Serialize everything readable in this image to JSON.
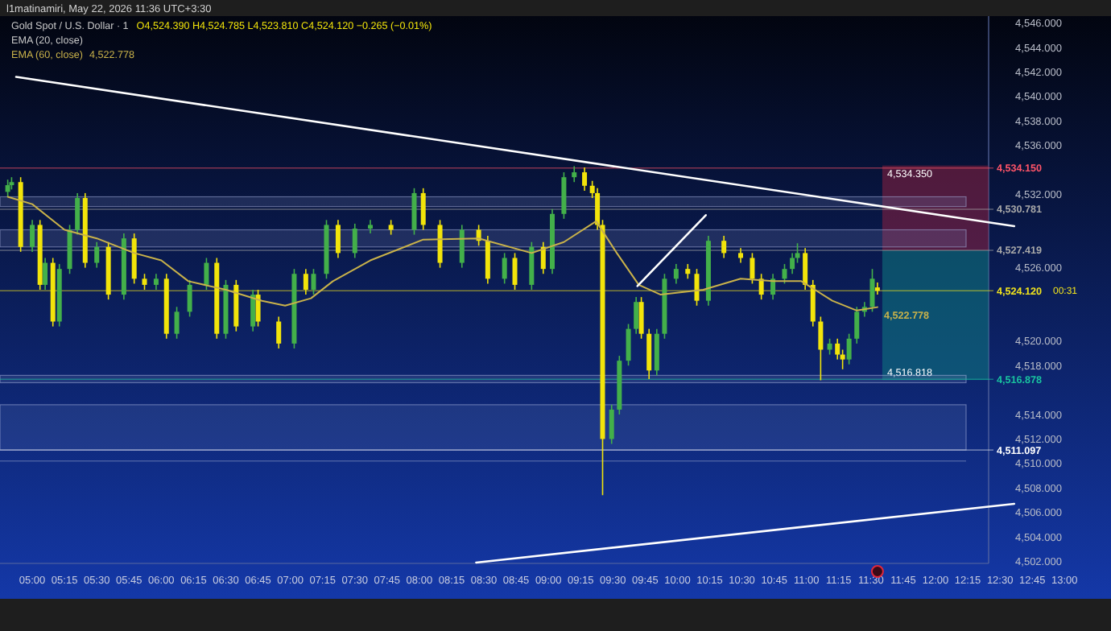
{
  "chart_data": {
    "type": "candlestick",
    "title": "Gold Spot / U.S. Dollar · 1",
    "annotations": [
      "l1matinamiri, May 22, 2026 11:36 UTC+3:30",
      "O4,524.390 H4,524.785 L4,523.810 C4,524.120 −0.265 (−0.01%)",
      "EMA (20, close)",
      "00:31"
    ],
    "x": [
      4.81,
      4.84,
      4.91,
      5.0,
      5.06,
      5.1,
      5.16,
      5.21,
      5.29,
      5.35,
      5.41,
      5.5,
      5.59,
      5.71,
      5.79,
      5.87,
      5.96,
      6.04,
      6.12,
      6.22,
      6.35,
      6.43,
      6.5,
      6.58,
      6.71,
      6.75,
      6.91,
      7.03,
      7.12,
      7.18,
      7.28,
      7.37,
      7.5,
      7.62,
      7.78,
      7.96,
      8.03,
      8.16,
      8.33,
      8.46,
      8.53,
      8.66,
      8.74,
      8.87,
      8.96,
      9.03,
      9.12,
      9.2,
      9.28,
      9.34,
      9.38,
      9.42,
      9.49,
      9.55,
      9.62,
      9.68,
      9.72,
      9.78,
      9.84,
      9.9,
      9.99,
      10.08,
      10.15,
      10.24,
      10.36,
      10.49,
      10.58,
      10.65,
      10.74,
      10.83,
      10.89,
      10.93,
      10.99,
      11.05,
      11.11,
      11.18,
      11.24,
      11.28,
      11.33,
      11.39,
      11.45,
      11.51,
      11.55
    ],
    "ohlc": [
      [
        4532.2,
        4533.2,
        4531.8,
        4532.75
      ],
      [
        4532.75,
        4533.4,
        4532.4,
        4533.0
      ],
      [
        4533.0,
        4533.4,
        4527.3,
        4527.7
      ],
      [
        4527.7,
        4529.9,
        4527.3,
        4529.5
      ],
      [
        4529.5,
        4529.9,
        4524.2,
        4524.6
      ],
      [
        4524.6,
        4526.8,
        4524.2,
        4526.4
      ],
      [
        4526.4,
        4526.8,
        4521.2,
        4521.6
      ],
      [
        4521.6,
        4526.3,
        4521.2,
        4525.9
      ],
      [
        4525.9,
        4529.5,
        4525.5,
        4529.1
      ],
      [
        4529.1,
        4532.1,
        4528.7,
        4531.7
      ],
      [
        4531.7,
        4532.1,
        4526.0,
        4526.4
      ],
      [
        4526.4,
        4528.1,
        4526.0,
        4527.7
      ],
      [
        4527.7,
        4528.1,
        4523.4,
        4523.8
      ],
      [
        4523.8,
        4528.8,
        4523.4,
        4528.4
      ],
      [
        4528.4,
        4528.8,
        4524.7,
        4525.1
      ],
      [
        4525.1,
        4525.5,
        4524.2,
        4524.6
      ],
      [
        4524.6,
        4525.5,
        4524.2,
        4525.1
      ],
      [
        4525.1,
        4525.5,
        4520.2,
        4520.6
      ],
      [
        4520.6,
        4522.8,
        4520.2,
        4522.4
      ],
      [
        4522.4,
        4525.0,
        4522.0,
        4524.6
      ],
      [
        4524.6,
        4526.8,
        4524.2,
        4526.4
      ],
      [
        4526.4,
        4526.8,
        4520.2,
        4520.6
      ],
      [
        4520.6,
        4525.0,
        4520.2,
        4524.6
      ],
      [
        4524.6,
        4525.0,
        4520.8,
        4521.2
      ],
      [
        4521.2,
        4524.2,
        4520.8,
        4523.8
      ],
      [
        4523.8,
        4524.2,
        4521.2,
        4521.6
      ],
      [
        4521.6,
        4522.0,
        4519.4,
        4519.8
      ],
      [
        4519.8,
        4525.9,
        4519.4,
        4525.5
      ],
      [
        4525.5,
        4525.9,
        4523.8,
        4524.2
      ],
      [
        4524.2,
        4525.9,
        4523.8,
        4525.5
      ],
      [
        4525.5,
        4529.9,
        4525.1,
        4529.5
      ],
      [
        4529.5,
        4529.9,
        4526.8,
        4527.2
      ],
      [
        4527.2,
        4529.6,
        4526.8,
        4529.2
      ],
      [
        4529.2,
        4529.9,
        4528.8,
        4529.5
      ],
      [
        4529.5,
        4529.9,
        4528.7,
        4529.1
      ],
      [
        4529.1,
        4532.5,
        4528.7,
        4532.1
      ],
      [
        4532.1,
        4532.5,
        4529.1,
        4529.5
      ],
      [
        4529.5,
        4529.9,
        4526.0,
        4526.4
      ],
      [
        4526.4,
        4529.5,
        4526.0,
        4529.1
      ],
      [
        4529.1,
        4529.5,
        4527.8,
        4528.2
      ],
      [
        4528.2,
        4528.6,
        4524.7,
        4525.1
      ],
      [
        4525.1,
        4527.2,
        4524.7,
        4526.8
      ],
      [
        4526.8,
        4527.2,
        4524.2,
        4524.6
      ],
      [
        4524.6,
        4528.1,
        4524.2,
        4527.7
      ],
      [
        4527.7,
        4528.1,
        4525.5,
        4525.9
      ],
      [
        4525.9,
        4530.8,
        4525.5,
        4530.4
      ],
      [
        4530.4,
        4533.8,
        4530.0,
        4533.4
      ],
      [
        4533.4,
        4534.3,
        4533.0,
        4533.8
      ],
      [
        4533.8,
        4534.2,
        4532.3,
        4532.7
      ],
      [
        4532.7,
        4533.1,
        4531.7,
        4532.1
      ],
      [
        4532.1,
        4532.5,
        4529.1,
        4529.5
      ],
      [
        4529.5,
        4529.9,
        4507.4,
        4512.0
      ],
      [
        4512.0,
        4514.8,
        4511.6,
        4514.4
      ],
      [
        4514.4,
        4518.8,
        4514.0,
        4518.4
      ],
      [
        4518.4,
        4521.4,
        4518.0,
        4521.0
      ],
      [
        4521.0,
        4523.6,
        4520.6,
        4523.2
      ],
      [
        4523.2,
        4523.6,
        4520.2,
        4520.6
      ],
      [
        4520.6,
        4521.0,
        4516.9,
        4517.6
      ],
      [
        4517.6,
        4521.0,
        4517.2,
        4520.6
      ],
      [
        4520.6,
        4525.5,
        4520.2,
        4525.1
      ],
      [
        4525.1,
        4526.3,
        4524.7,
        4525.9
      ],
      [
        4525.9,
        4526.3,
        4525.1,
        4525.5
      ],
      [
        4525.5,
        4525.9,
        4522.9,
        4523.3
      ],
      [
        4523.3,
        4528.6,
        4522.9,
        4528.2
      ],
      [
        4528.2,
        4528.6,
        4526.8,
        4527.2
      ],
      [
        4527.2,
        4527.6,
        4526.4,
        4526.8
      ],
      [
        4526.8,
        4527.2,
        4524.7,
        4525.1
      ],
      [
        4525.1,
        4525.5,
        4523.4,
        4523.8
      ],
      [
        4523.8,
        4525.5,
        4523.4,
        4525.1
      ],
      [
        4525.1,
        4526.3,
        4524.7,
        4525.9
      ],
      [
        4525.9,
        4527.2,
        4525.5,
        4526.8
      ],
      [
        4526.8,
        4528.0,
        4526.4,
        4527.2
      ],
      [
        4527.2,
        4527.6,
        4524.2,
        4524.6
      ],
      [
        4524.6,
        4525.0,
        4521.2,
        4521.6
      ],
      [
        4521.6,
        4522.0,
        4516.8,
        4519.3
      ],
      [
        4519.3,
        4520.2,
        4518.9,
        4519.8
      ],
      [
        4519.8,
        4520.2,
        4518.5,
        4518.9
      ],
      [
        4518.9,
        4519.3,
        4517.7,
        4518.5
      ],
      [
        4518.5,
        4520.6,
        4518.1,
        4520.2
      ],
      [
        4520.2,
        4522.8,
        4519.8,
        4522.4
      ],
      [
        4522.4,
        4523.2,
        4522.0,
        4522.8
      ],
      [
        4522.8,
        4525.9,
        4522.4,
        4525.1
      ],
      [
        4524.39,
        4524.785,
        4523.81,
        4524.12
      ]
    ],
    "series": [
      {
        "name": "EMA (60, close)",
        "type": "line",
        "color": "#c9b24a",
        "x": [
          4.81,
          5.0,
          5.25,
          5.5,
          5.79,
          6.0,
          6.21,
          6.5,
          6.78,
          6.96,
          7.16,
          7.33,
          7.62,
          8.03,
          8.46,
          8.87,
          9.12,
          9.37,
          9.53,
          9.7,
          9.87,
          10.2,
          10.49,
          10.74,
          10.96,
          11.2,
          11.39,
          11.55
        ],
        "values": [
          4531.8,
          4531.2,
          4529.1,
          4528.4,
          4527.2,
          4526.6,
          4524.9,
          4524.2,
          4523.3,
          4522.9,
          4523.5,
          4524.9,
          4526.6,
          4528.3,
          4528.4,
          4527.2,
          4528.1,
          4529.8,
          4527.2,
          4524.6,
          4523.8,
          4524.2,
          4525.1,
          4524.9,
          4524.9,
          4523.3,
          4522.5,
          4522.778
        ],
        "value_labels": [
          null,
          null,
          null,
          null,
          null,
          null,
          null,
          null,
          null,
          null,
          null,
          null,
          null,
          null,
          null,
          null,
          null,
          null,
          null,
          null,
          null,
          null,
          null,
          null,
          null,
          null,
          null,
          "4,522.778"
        ]
      },
      {
        "type": "line",
        "color": "#ffffff",
        "x": [
          4.875,
          12.61
        ],
        "values": [
          4541.6,
          4529.4
        ]
      },
      {
        "type": "line",
        "color": "#ffffff",
        "x": [
          8.44,
          12.61
        ],
        "values": [
          4501.9,
          4506.7
        ]
      },
      {
        "type": "line",
        "color": "#ffffff",
        "x": [
          9.69,
          10.22
        ],
        "values": [
          4524.5,
          4530.3
        ]
      }
    ],
    "xlim": [
      4.75,
      13.36
    ],
    "ylim": [
      4501.83,
      4546.57
    ],
    "xticks": [
      {
        "value": 5,
        "label": "05:00"
      },
      {
        "value": 5.25,
        "label": "05:15"
      },
      {
        "value": 5.5,
        "label": "05:30"
      },
      {
        "value": 5.75,
        "label": "05:45"
      },
      {
        "value": 6,
        "label": "06:00"
      },
      {
        "value": 6.25,
        "label": "06:15"
      },
      {
        "value": 6.5,
        "label": "06:30"
      },
      {
        "value": 6.75,
        "label": "06:45"
      },
      {
        "value": 7,
        "label": "07:00"
      },
      {
        "value": 7.25,
        "label": "07:15"
      },
      {
        "value": 7.5,
        "label": "07:30"
      },
      {
        "value": 7.75,
        "label": "07:45"
      },
      {
        "value": 8,
        "label": "08:00"
      },
      {
        "value": 8.25,
        "label": "08:15"
      },
      {
        "value": 8.5,
        "label": "08:30"
      },
      {
        "value": 8.75,
        "label": "08:45"
      },
      {
        "value": 9,
        "label": "09:00"
      },
      {
        "value": 9.25,
        "label": "09:15"
      },
      {
        "value": 9.5,
        "label": "09:30"
      },
      {
        "value": 9.75,
        "label": "09:45"
      },
      {
        "value": 10,
        "label": "10:00"
      },
      {
        "value": 10.25,
        "label": "10:15"
      },
      {
        "value": 10.5,
        "label": "10:30"
      },
      {
        "value": 10.75,
        "label": "10:45"
      },
      {
        "value": 11,
        "label": "11:00"
      },
      {
        "value": 11.25,
        "label": "11:15"
      },
      {
        "value": 11.5,
        "label": "11:30"
      },
      {
        "value": 11.75,
        "label": "11:45"
      },
      {
        "value": 12,
        "label": "12:00"
      },
      {
        "value": 12.25,
        "label": "12:15"
      },
      {
        "value": 12.5,
        "label": "12:30"
      },
      {
        "value": 12.75,
        "label": "12:45"
      },
      {
        "value": 13,
        "label": "13:00"
      }
    ],
    "yticks": [
      {
        "value": 4502,
        "label": "4,502.000"
      },
      {
        "value": 4504,
        "label": "4,504.000"
      },
      {
        "value": 4506,
        "label": "4,506.000"
      },
      {
        "value": 4508,
        "label": "4,508.000"
      },
      {
        "value": 4510,
        "label": "4,510.000"
      },
      {
        "value": 4512,
        "label": "4,512.000"
      },
      {
        "value": 4514,
        "label": "4,514.000"
      },
      {
        "value": 4518,
        "label": "4,518.000"
      },
      {
        "value": 4520,
        "label": "4,520.000"
      },
      {
        "value": 4526,
        "label": "4,526.000"
      },
      {
        "value": 4532,
        "label": "4,532.000"
      },
      {
        "value": 4536,
        "label": "4,536.000"
      },
      {
        "value": 4538,
        "label": "4,538.000"
      },
      {
        "value": 4540,
        "label": "4,540.000"
      },
      {
        "value": 4542,
        "label": "4,542.000"
      },
      {
        "value": 4544,
        "label": "4,544.000"
      },
      {
        "value": 4546,
        "label": "4,546.000"
      }
    ],
    "bands": [
      {
        "axis": "y",
        "from": 4527.419,
        "to": 4534.35,
        "label": "4,534.350",
        "color": "#8c2040"
      },
      {
        "axis": "y",
        "from": 4516.818,
        "to": 4527.419,
        "label": "4,516.818",
        "color": "#0e7a80"
      },
      {
        "axis": "y",
        "from": 4511.1,
        "to": 4514.8,
        "color": "#5a70b0"
      },
      {
        "axis": "y",
        "from": 4531.0,
        "to": 4531.8,
        "color": "#7080b0"
      },
      {
        "axis": "y",
        "from": 4527.7,
        "to": 4529.1,
        "color": "#7080b0"
      },
      {
        "axis": "y",
        "from": 4516.6,
        "to": 4517.2,
        "color": "#7080b0"
      }
    ],
    "ref_lines": [
      {
        "axis": "y",
        "value": 4534.15,
        "label": "4,534.150",
        "color": "#ff5468"
      },
      {
        "axis": "y",
        "value": 4530.781,
        "label": "4,530.781",
        "color": "#a8a8a8"
      },
      {
        "axis": "y",
        "value": 4527.419,
        "label": "4,527.419",
        "color": "#a8a8a8"
      },
      {
        "axis": "y",
        "value": 4524.12,
        "label": "4,524.120",
        "color": "#f2e41c"
      },
      {
        "axis": "y",
        "value": 4516.878,
        "label": "4,516.878",
        "color": "#19c29f"
      },
      {
        "axis": "y",
        "value": 4511.097,
        "label": "4,511.097",
        "color": "#ffffff"
      },
      {
        "axis": "y",
        "value": 4510.2,
        "color": "#8090c0"
      }
    ],
    "legend": "top left",
    "grid": false
  }
}
